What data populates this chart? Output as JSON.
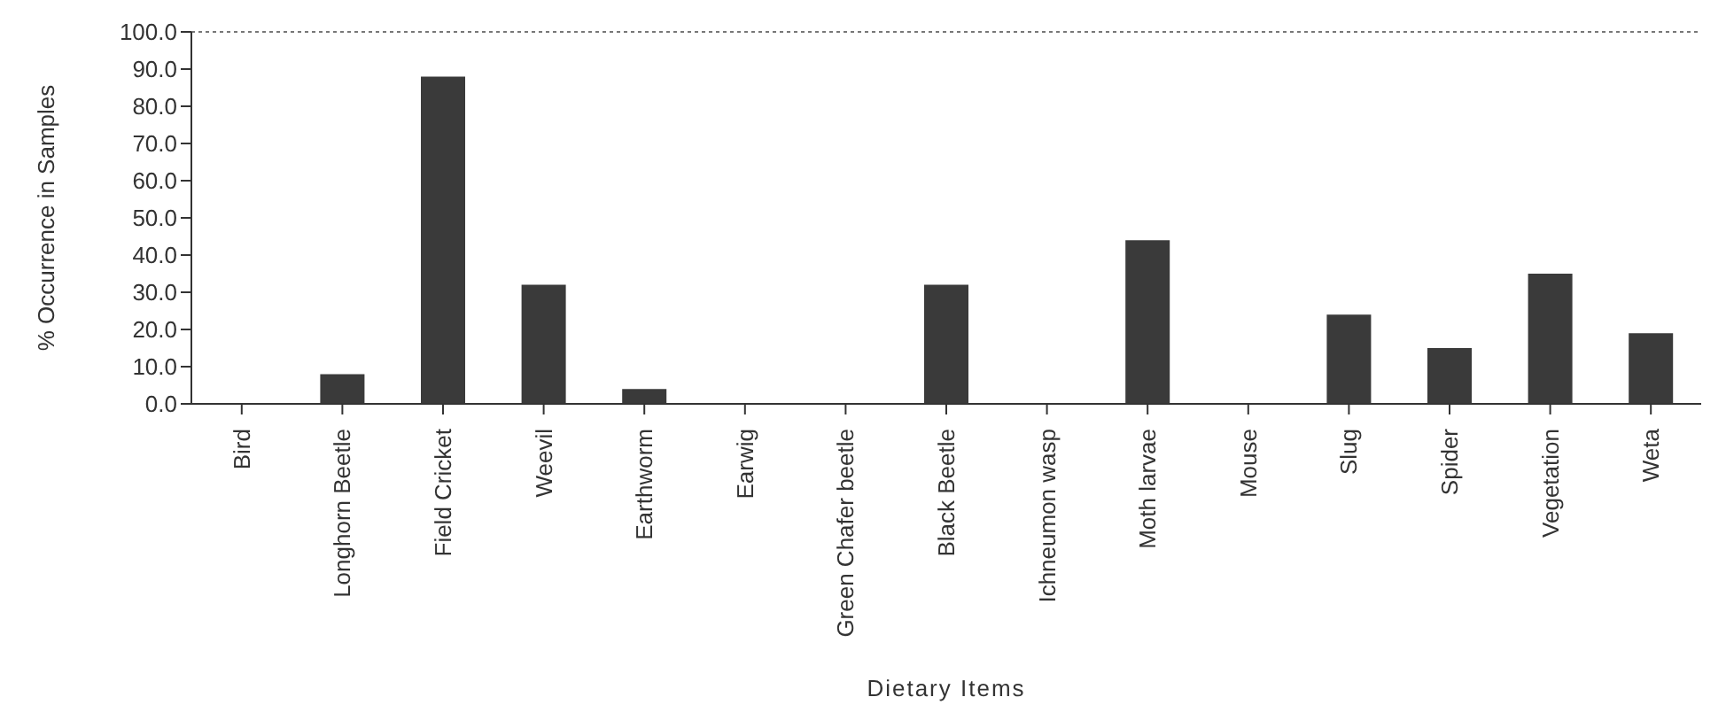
{
  "chart_data": {
    "type": "bar",
    "xlabel": "Dietary Items",
    "ylabel": "% Occurrence in Samples",
    "categories": [
      "Bird",
      "Longhorn Beetle",
      "Field Cricket",
      "Weevil",
      "Earthworm",
      "Earwig",
      "Green Chafer beetle",
      "Black Beetle",
      "Ichneumon wasp",
      "Moth larvae",
      "Mouse",
      "Slug",
      "Spider",
      "Vegetation",
      "Weta"
    ],
    "values": [
      0,
      8,
      88,
      32,
      4,
      0,
      0,
      32,
      0,
      44,
      0,
      24,
      15,
      35,
      19
    ],
    "color": "#3a3a3a",
    "ylim": [
      0,
      100
    ],
    "yticks": [
      {
        "value": 0,
        "label": "0.0"
      },
      {
        "value": 10,
        "label": "10.0"
      },
      {
        "value": 20,
        "label": "20.0"
      },
      {
        "value": 30,
        "label": "30.0"
      },
      {
        "value": 40,
        "label": "40.0"
      },
      {
        "value": 50,
        "label": "50.0"
      },
      {
        "value": 60,
        "label": "60.0"
      },
      {
        "value": 70,
        "label": "70.0"
      },
      {
        "value": 80,
        "label": "80.0"
      },
      {
        "value": 90,
        "label": "90.0"
      },
      {
        "value": 100,
        "label": "100.0"
      }
    ],
    "ref_lines": [
      {
        "axis": "y",
        "value": 100,
        "color": "#777777",
        "line_style": "dotted"
      }
    ],
    "grid": false
  }
}
